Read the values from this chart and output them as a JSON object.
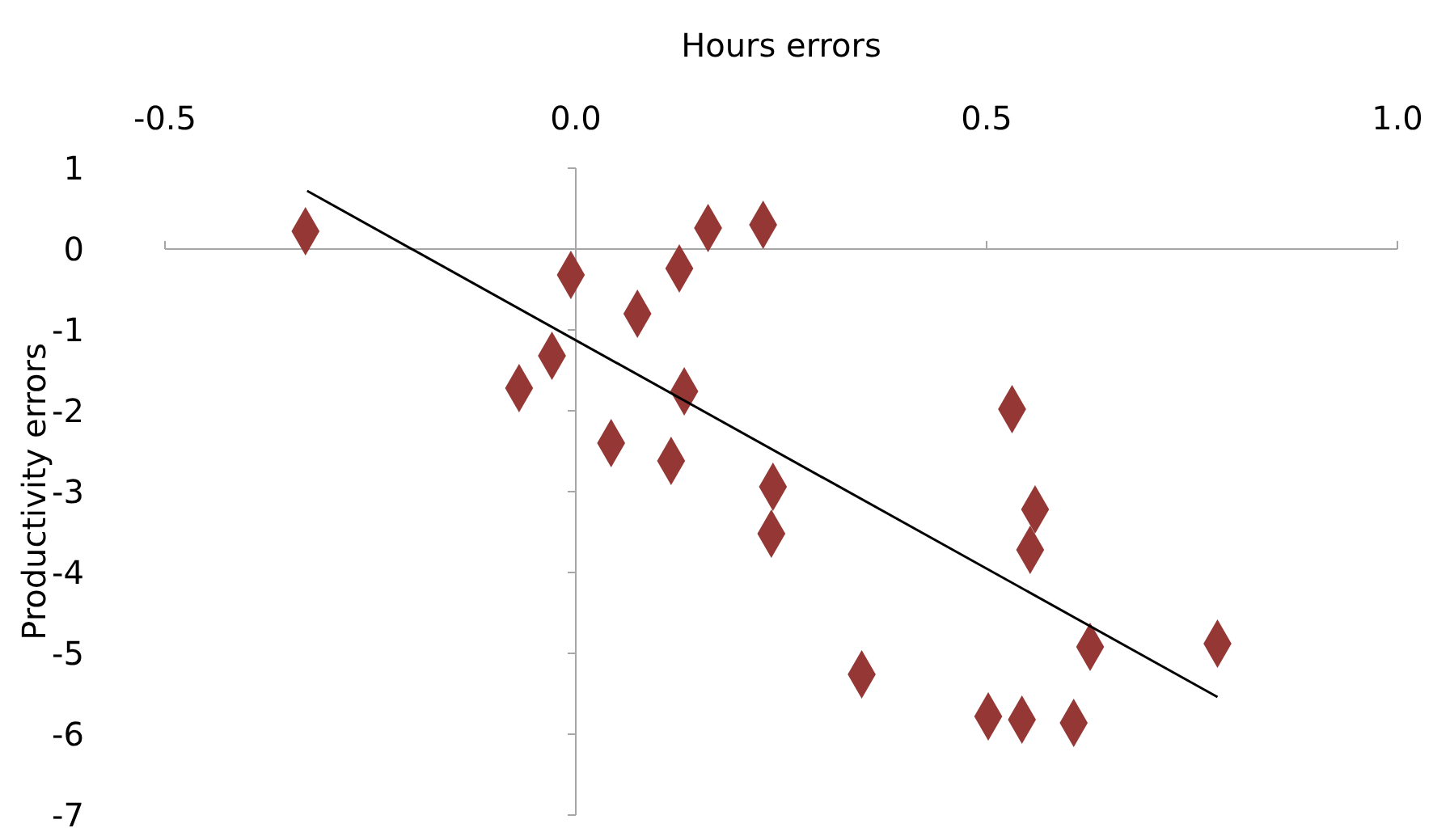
{
  "chart_data": {
    "type": "scatter",
    "xlabel": "Hours errors",
    "ylabel": "Productivity errors",
    "xlim": [
      -0.5,
      1.0
    ],
    "ylim": [
      -7,
      1
    ],
    "xticks": [
      {
        "value": -0.5,
        "label": "-0.5"
      },
      {
        "value": 0,
        "label": "0.0"
      },
      {
        "value": 0.5,
        "label": "0.5"
      },
      {
        "value": 1,
        "label": "1.0"
      }
    ],
    "yticks": [
      1,
      0,
      -1,
      -2,
      -3,
      -4,
      -5,
      -6,
      -7
    ],
    "marker": "diamond",
    "series": [
      {
        "color": "#953735",
        "x": [
          -0.329,
          -0.006,
          0.075,
          0.126,
          0.161,
          0.228,
          -0.069,
          -0.029,
          0.132,
          0.043,
          0.116,
          0.24,
          0.238,
          0.531,
          0.559,
          0.553,
          0.348,
          0.502,
          0.543,
          0.606,
          0.626,
          0.781
        ],
        "values": [
          0.22,
          -0.32,
          -0.8,
          -0.24,
          0.26,
          0.3,
          -1.72,
          -1.32,
          -1.76,
          -2.4,
          -2.62,
          -2.94,
          -3.52,
          -1.98,
          -3.22,
          -3.72,
          -5.26,
          -5.78,
          -5.82,
          -5.86,
          -4.92,
          -4.88
        ]
      },
      {
        "type": "line",
        "color": "#000000",
        "marker": "none",
        "x": [
          -0.327,
          0.781
        ],
        "values": [
          0.72,
          -5.54
        ]
      }
    ]
  }
}
